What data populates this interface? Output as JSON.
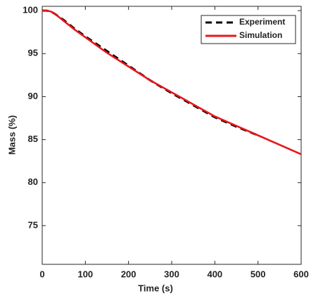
{
  "chart_data": {
    "type": "line",
    "xlabel": "Time (s)",
    "ylabel": "Mass (%)",
    "xlim": [
      0,
      600
    ],
    "ylim": [
      70.5,
      100.5
    ],
    "xticks": [
      0,
      100,
      200,
      300,
      400,
      500,
      600
    ],
    "yticks": [
      75,
      80,
      85,
      90,
      95,
      100
    ],
    "legend": "upper right",
    "series": [
      {
        "name": "Experiment",
        "color": "#000000",
        "dashed": true,
        "x": [
          0,
          10,
          20,
          30,
          50,
          75,
          100,
          150,
          200,
          250,
          300,
          350,
          400,
          450,
          500
        ],
        "values": [
          100,
          100,
          99.9,
          99.6,
          98.9,
          97.9,
          97.0,
          95.3,
          93.6,
          91.9,
          90.4,
          89.0,
          87.6,
          86.5,
          85.5
        ]
      },
      {
        "name": "Simulation",
        "color": "#e8161b",
        "dashed": false,
        "x": [
          0,
          10,
          20,
          30,
          50,
          75,
          100,
          150,
          200,
          250,
          300,
          350,
          400,
          450,
          500,
          550,
          600
        ],
        "values": [
          100,
          100,
          99.9,
          99.6,
          98.8,
          97.8,
          96.9,
          95.1,
          93.5,
          91.9,
          90.5,
          89.1,
          87.7,
          86.6,
          85.5,
          84.4,
          83.3
        ]
      }
    ]
  }
}
